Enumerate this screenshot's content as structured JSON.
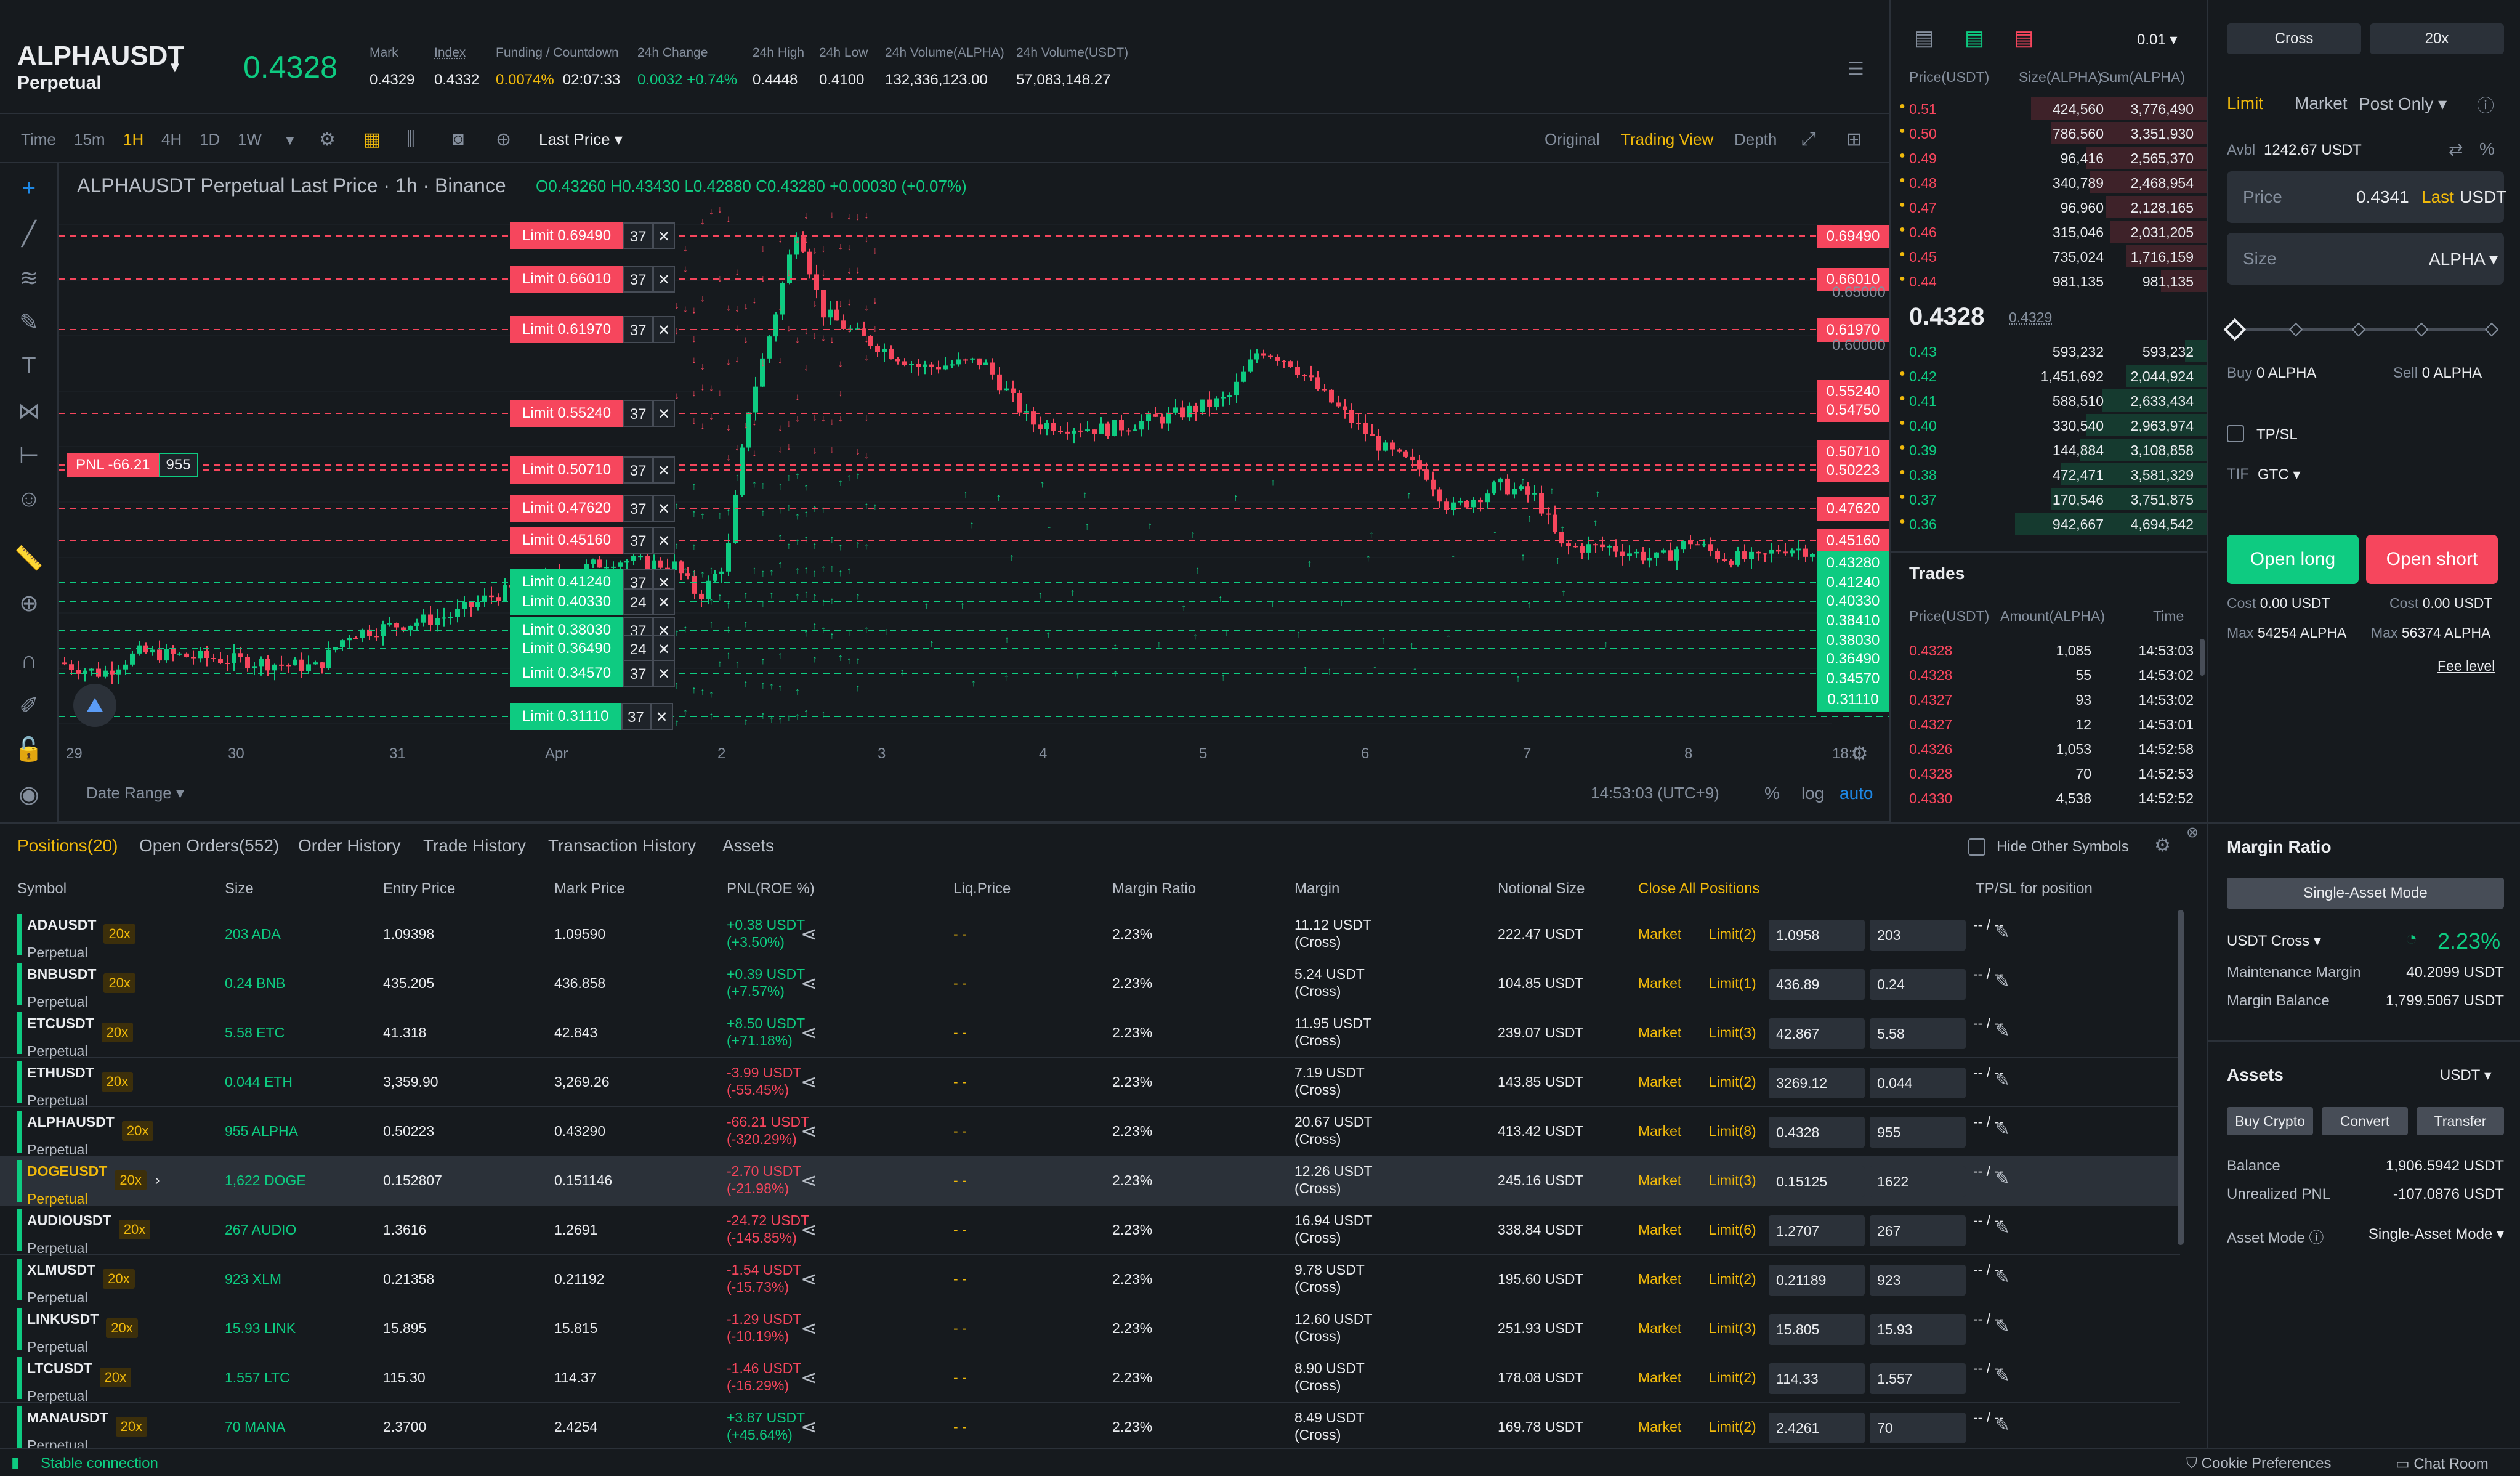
{
  "header": {
    "symbol": "ALPHAUSDT",
    "subtitle": "Perpetual",
    "last_price": "0.4328",
    "stats": [
      {
        "label": "Mark",
        "value": "0.4329",
        "color": "#eaecef"
      },
      {
        "label": "Index",
        "value": "0.4332",
        "color": "#eaecef"
      },
      {
        "label": "Funding / Countdown",
        "value": "0.0074%",
        "value2": "02:07:33",
        "color": "#f0b90b"
      },
      {
        "label": "24h Change",
        "value": "0.0032 +0.74%",
        "color": "#0ecb81"
      },
      {
        "label": "24h High",
        "value": "0.4448",
        "color": "#eaecef"
      },
      {
        "label": "24h Low",
        "value": "0.4100",
        "color": "#eaecef"
      },
      {
        "label": "24h Volume(ALPHA)",
        "value": "132,336,123.00",
        "color": "#eaecef"
      },
      {
        "label": "24h Volume(USDT)",
        "value": "57,083,148.27",
        "color": "#eaecef"
      }
    ]
  },
  "toolbar": {
    "timeframes": [
      "Time",
      "15m",
      "1H",
      "4H",
      "1D",
      "1W"
    ],
    "active_tf": "1H",
    "price_type": "Last Price",
    "views": [
      "Original",
      "Trading View",
      "Depth"
    ],
    "active_view": "Trading View"
  },
  "chart": {
    "title": "ALPHAUSDT Perpetual Last Price · 1h · Binance",
    "ohlc": "O0.43260  H0.43430  L0.42880  C0.43280  +0.00030 (+0.07%)",
    "sell_orders": [
      {
        "label": "Limit 0.69490",
        "qty": "37"
      },
      {
        "label": "Limit 0.66010",
        "qty": "37"
      },
      {
        "label": "Limit 0.61970",
        "qty": "37"
      },
      {
        "label": "Limit 0.55240",
        "qty": "37"
      },
      {
        "label": "Limit 0.50710",
        "qty": "37"
      },
      {
        "label": "Limit 0.47620",
        "qty": "37"
      },
      {
        "label": "Limit 0.45160",
        "qty": "37"
      }
    ],
    "buy_orders": [
      {
        "label": "Limit 0.41240",
        "qty": "37"
      },
      {
        "label": "Limit 0.40330",
        "qty": "24"
      },
      {
        "label": "Limit 0.38030",
        "qty": "37"
      },
      {
        "label": "Limit 0.36490",
        "qty": "24"
      },
      {
        "label": "Limit 0.34570",
        "qty": "37"
      },
      {
        "label": "Limit 0.31110",
        "qty": "37"
      }
    ],
    "pnl_label": "PNL -66.21",
    "pnl_qty": "955",
    "price_axis_red": [
      "0.69490",
      "0.66010",
      "0.61970",
      "0.55240",
      "0.54750",
      "0.50710",
      "0.50223",
      "0.47620",
      "0.45160"
    ],
    "price_axis_green": [
      "0.43280",
      "0.41240",
      "0.40330",
      "0.38410",
      "0.38030",
      "0.36490",
      "0.34570",
      "0.31110"
    ],
    "price_axis_plain": [
      "0.65000",
      "0.60000"
    ],
    "x_ticks": [
      "29",
      "30",
      "31",
      "Apr",
      "2",
      "3",
      "4",
      "5",
      "6",
      "7",
      "8",
      "18:0"
    ],
    "date_range": "Date Range",
    "clock": "14:53:03 (UTC+9)",
    "scale_opts": [
      "%",
      "log",
      "auto"
    ]
  },
  "orderbook": {
    "precision": "0.01",
    "headers": [
      "Price(USDT)",
      "Size(ALPHA)",
      "Sum(ALPHA)"
    ],
    "asks": [
      {
        "p": "0.51",
        "s": "424,560",
        "t": "3,776,490",
        "w": 0.9
      },
      {
        "p": "0.50",
        "s": "786,560",
        "t": "3,351,930",
        "w": 0.8
      },
      {
        "p": "0.49",
        "s": "96,416",
        "t": "2,565,370",
        "w": 0.62
      },
      {
        "p": "0.48",
        "s": "340,789",
        "t": "2,468,954",
        "w": 0.6
      },
      {
        "p": "0.47",
        "s": "96,960",
        "t": "2,128,165",
        "w": 0.52
      },
      {
        "p": "0.46",
        "s": "315,046",
        "t": "2,031,205",
        "w": 0.5
      },
      {
        "p": "0.45",
        "s": "735,024",
        "t": "1,716,159",
        "w": 0.42
      },
      {
        "p": "0.44",
        "s": "981,135",
        "t": "981,135",
        "w": 0.24
      }
    ],
    "mid": "0.4328",
    "mid_mark": "0.4329",
    "bids": [
      {
        "p": "0.43",
        "s": "593,232",
        "t": "593,232",
        "w": 0.12
      },
      {
        "p": "0.42",
        "s": "1,451,692",
        "t": "2,044,924",
        "w": 0.42
      },
      {
        "p": "0.41",
        "s": "588,510",
        "t": "2,633,434",
        "w": 0.54
      },
      {
        "p": "0.40",
        "s": "330,540",
        "t": "2,963,974",
        "w": 0.62
      },
      {
        "p": "0.39",
        "s": "144,884",
        "t": "3,108,858",
        "w": 0.65
      },
      {
        "p": "0.38",
        "s": "472,471",
        "t": "3,581,329",
        "w": 0.75
      },
      {
        "p": "0.37",
        "s": "170,546",
        "t": "3,751,875",
        "w": 0.8
      },
      {
        "p": "0.36",
        "s": "942,667",
        "t": "4,694,542",
        "w": 0.98
      }
    ]
  },
  "trades": {
    "title": "Trades",
    "headers": [
      "Price(USDT)",
      "Amount(ALPHA)",
      "Time"
    ],
    "rows": [
      {
        "p": "0.4328",
        "a": "1,085",
        "t": "14:53:03",
        "side": "sell"
      },
      {
        "p": "0.4328",
        "a": "55",
        "t": "14:53:02",
        "side": "sell"
      },
      {
        "p": "0.4327",
        "a": "93",
        "t": "14:53:02",
        "side": "sell"
      },
      {
        "p": "0.4327",
        "a": "12",
        "t": "14:53:01",
        "side": "sell"
      },
      {
        "p": "0.4326",
        "a": "1,053",
        "t": "14:52:58",
        "side": "sell"
      },
      {
        "p": "0.4328",
        "a": "70",
        "t": "14:52:53",
        "side": "sell"
      },
      {
        "p": "0.4330",
        "a": "4,538",
        "t": "14:52:52",
        "side": "sell"
      }
    ]
  },
  "form": {
    "margin_mode": "Cross",
    "leverage": "20x",
    "tabs": [
      "Limit",
      "Market",
      "Post Only"
    ],
    "avbl_label": "Avbl",
    "avbl": "1242.67 USDT",
    "price_label": "Price",
    "price_value": "0.4341",
    "price_last": "Last",
    "price_unit": "USDT",
    "size_label": "Size",
    "size_unit": "ALPHA",
    "buy_label": "Buy",
    "buy_value": "0 ALPHA",
    "sell_label": "Sell",
    "sell_value": "0 ALPHA",
    "tpsl": "TP/SL",
    "tif_label": "TIF",
    "tif": "GTC",
    "open_long": "Open long",
    "open_short": "Open short",
    "cost_label": "Cost",
    "cost_long": "0.00 USDT",
    "cost_short": "0.00 USDT",
    "max_label": "Max",
    "max_long": "54254 ALPHA",
    "max_short": "56374 ALPHA",
    "fee_level": "Fee level"
  },
  "positions": {
    "tabs": [
      "Positions(20)",
      "Open Orders(552)",
      "Order History",
      "Trade History",
      "Transaction History",
      "Assets"
    ],
    "hide_other": "Hide Other Symbols",
    "close_all": "Close All Positions",
    "headers": [
      "Symbol",
      "Size",
      "Entry Price",
      "Mark Price",
      "PNL(ROE %)",
      "Liq.Price",
      "Margin Ratio",
      "Margin",
      "Notional Size",
      "TP/SL for position"
    ],
    "rows": [
      {
        "sym": "ADAUSDT",
        "sub": "Perpetual",
        "lev": "20x",
        "size": "203 ADA",
        "entry": "1.09398",
        "mark": "1.09590",
        "pnl": "+0.38 USDT",
        "roe": "(+3.50%)",
        "liq": "- -",
        "mr": "2.23%",
        "margin": "11.12 USDT",
        "mtype": "(Cross)",
        "notional": "222.47 USDT",
        "mkt": "Market",
        "limit": "Limit(2)",
        "lp": "1.0958",
        "lq": "203",
        "pos": true
      },
      {
        "sym": "BNBUSDT",
        "sub": "Perpetual",
        "lev": "20x",
        "size": "0.24 BNB",
        "entry": "435.205",
        "mark": "436.858",
        "pnl": "+0.39 USDT",
        "roe": "(+7.57%)",
        "liq": "- -",
        "mr": "2.23%",
        "margin": "5.24 USDT",
        "mtype": "(Cross)",
        "notional": "104.85 USDT",
        "mkt": "Market",
        "limit": "Limit(1)",
        "lp": "436.89",
        "lq": "0.24",
        "pos": true
      },
      {
        "sym": "ETCUSDT",
        "sub": "Perpetual",
        "lev": "20x",
        "size": "5.58 ETC",
        "entry": "41.318",
        "mark": "42.843",
        "pnl": "+8.50 USDT",
        "roe": "(+71.18%)",
        "liq": "- -",
        "mr": "2.23%",
        "margin": "11.95 USDT",
        "mtype": "(Cross)",
        "notional": "239.07 USDT",
        "mkt": "Market",
        "limit": "Limit(3)",
        "lp": "42.867",
        "lq": "5.58",
        "pos": true
      },
      {
        "sym": "ETHUSDT",
        "sub": "Perpetual",
        "lev": "20x",
        "size": "0.044 ETH",
        "entry": "3,359.90",
        "mark": "3,269.26",
        "pnl": "-3.99 USDT",
        "roe": "(-55.45%)",
        "liq": "- -",
        "mr": "2.23%",
        "margin": "7.19 USDT",
        "mtype": "(Cross)",
        "notional": "143.85 USDT",
        "mkt": "Market",
        "limit": "Limit(2)",
        "lp": "3269.12",
        "lq": "0.044",
        "pos": false
      },
      {
        "sym": "ALPHAUSDT",
        "sub": "Perpetual",
        "lev": "20x",
        "size": "955 ALPHA",
        "entry": "0.50223",
        "mark": "0.43290",
        "pnl": "-66.21 USDT",
        "roe": "(-320.29%)",
        "liq": "- -",
        "mr": "2.23%",
        "margin": "20.67 USDT",
        "mtype": "(Cross)",
        "notional": "413.42 USDT",
        "mkt": "Market",
        "limit": "Limit(8)",
        "lp": "0.4328",
        "lq": "955",
        "pos": false
      },
      {
        "sym": "DOGEUSDT",
        "sub": "Perpetual",
        "lev": "20x",
        "size": "1,622 DOGE",
        "entry": "0.152807",
        "mark": "0.151146",
        "pnl": "-2.70 USDT",
        "roe": "(-21.98%)",
        "liq": "- -",
        "mr": "2.23%",
        "margin": "12.26 USDT",
        "mtype": "(Cross)",
        "notional": "245.16 USDT",
        "mkt": "Market",
        "limit": "Limit(3)",
        "lp": "0.15125",
        "lq": "1622",
        "pos": false,
        "hl": true
      },
      {
        "sym": "AUDIOUSDT",
        "sub": "Perpetual",
        "lev": "20x",
        "size": "267 AUDIO",
        "entry": "1.3616",
        "mark": "1.2691",
        "pnl": "-24.72 USDT",
        "roe": "(-145.85%)",
        "liq": "- -",
        "mr": "2.23%",
        "margin": "16.94 USDT",
        "mtype": "(Cross)",
        "notional": "338.84 USDT",
        "mkt": "Market",
        "limit": "Limit(6)",
        "lp": "1.2707",
        "lq": "267",
        "pos": false
      },
      {
        "sym": "XLMUSDT",
        "sub": "Perpetual",
        "lev": "20x",
        "size": "923 XLM",
        "entry": "0.21358",
        "mark": "0.21192",
        "pnl": "-1.54 USDT",
        "roe": "(-15.73%)",
        "liq": "- -",
        "mr": "2.23%",
        "margin": "9.78 USDT",
        "mtype": "(Cross)",
        "notional": "195.60 USDT",
        "mkt": "Market",
        "limit": "Limit(2)",
        "lp": "0.21189",
        "lq": "923",
        "pos": false
      },
      {
        "sym": "LINKUSDT",
        "sub": "Perpetual",
        "lev": "20x",
        "size": "15.93 LINK",
        "entry": "15.895",
        "mark": "15.815",
        "pnl": "-1.29 USDT",
        "roe": "(-10.19%)",
        "liq": "- -",
        "mr": "2.23%",
        "margin": "12.60 USDT",
        "mtype": "(Cross)",
        "notional": "251.93 USDT",
        "mkt": "Market",
        "limit": "Limit(3)",
        "lp": "15.805",
        "lq": "15.93",
        "pos": false
      },
      {
        "sym": "LTCUSDT",
        "sub": "Perpetual",
        "lev": "20x",
        "size": "1.557 LTC",
        "entry": "115.30",
        "mark": "114.37",
        "pnl": "-1.46 USDT",
        "roe": "(-16.29%)",
        "liq": "- -",
        "mr": "2.23%",
        "margin": "8.90 USDT",
        "mtype": "(Cross)",
        "notional": "178.08 USDT",
        "mkt": "Market",
        "limit": "Limit(2)",
        "lp": "114.33",
        "lq": "1.557",
        "pos": false
      },
      {
        "sym": "MANAUSDT",
        "sub": "Perpetual",
        "lev": "20x",
        "size": "70 MANA",
        "entry": "2.3700",
        "mark": "2.4254",
        "pnl": "+3.87 USDT",
        "roe": "(+45.64%)",
        "liq": "- -",
        "mr": "2.23%",
        "margin": "8.49 USDT",
        "mtype": "(Cross)",
        "notional": "169.78 USDT",
        "mkt": "Market",
        "limit": "Limit(2)",
        "lp": "2.4261",
        "lq": "70",
        "pos": true
      }
    ]
  },
  "margin": {
    "title": "Margin Ratio",
    "mode_btn": "Single-Asset Mode",
    "cross": "USDT Cross",
    "ratio": "2.23%",
    "maint_label": "Maintenance Margin",
    "maint": "40.2099 USDT",
    "bal_label": "Margin Balance",
    "bal": "1,799.5067 USDT",
    "assets_title": "Assets",
    "assets_unit": "USDT",
    "btns": [
      "Buy Crypto",
      "Convert",
      "Transfer"
    ],
    "balance_label": "Balance",
    "balance": "1,906.5942 USDT",
    "upnl_label": "Unrealized PNL",
    "upnl": "-107.0876 USDT",
    "asset_mode_label": "Asset Mode",
    "asset_mode": "Single-Asset Mode"
  },
  "status": {
    "conn": "Stable connection",
    "cookie": "Cookie Preferences",
    "chat": "Chat Room"
  }
}
